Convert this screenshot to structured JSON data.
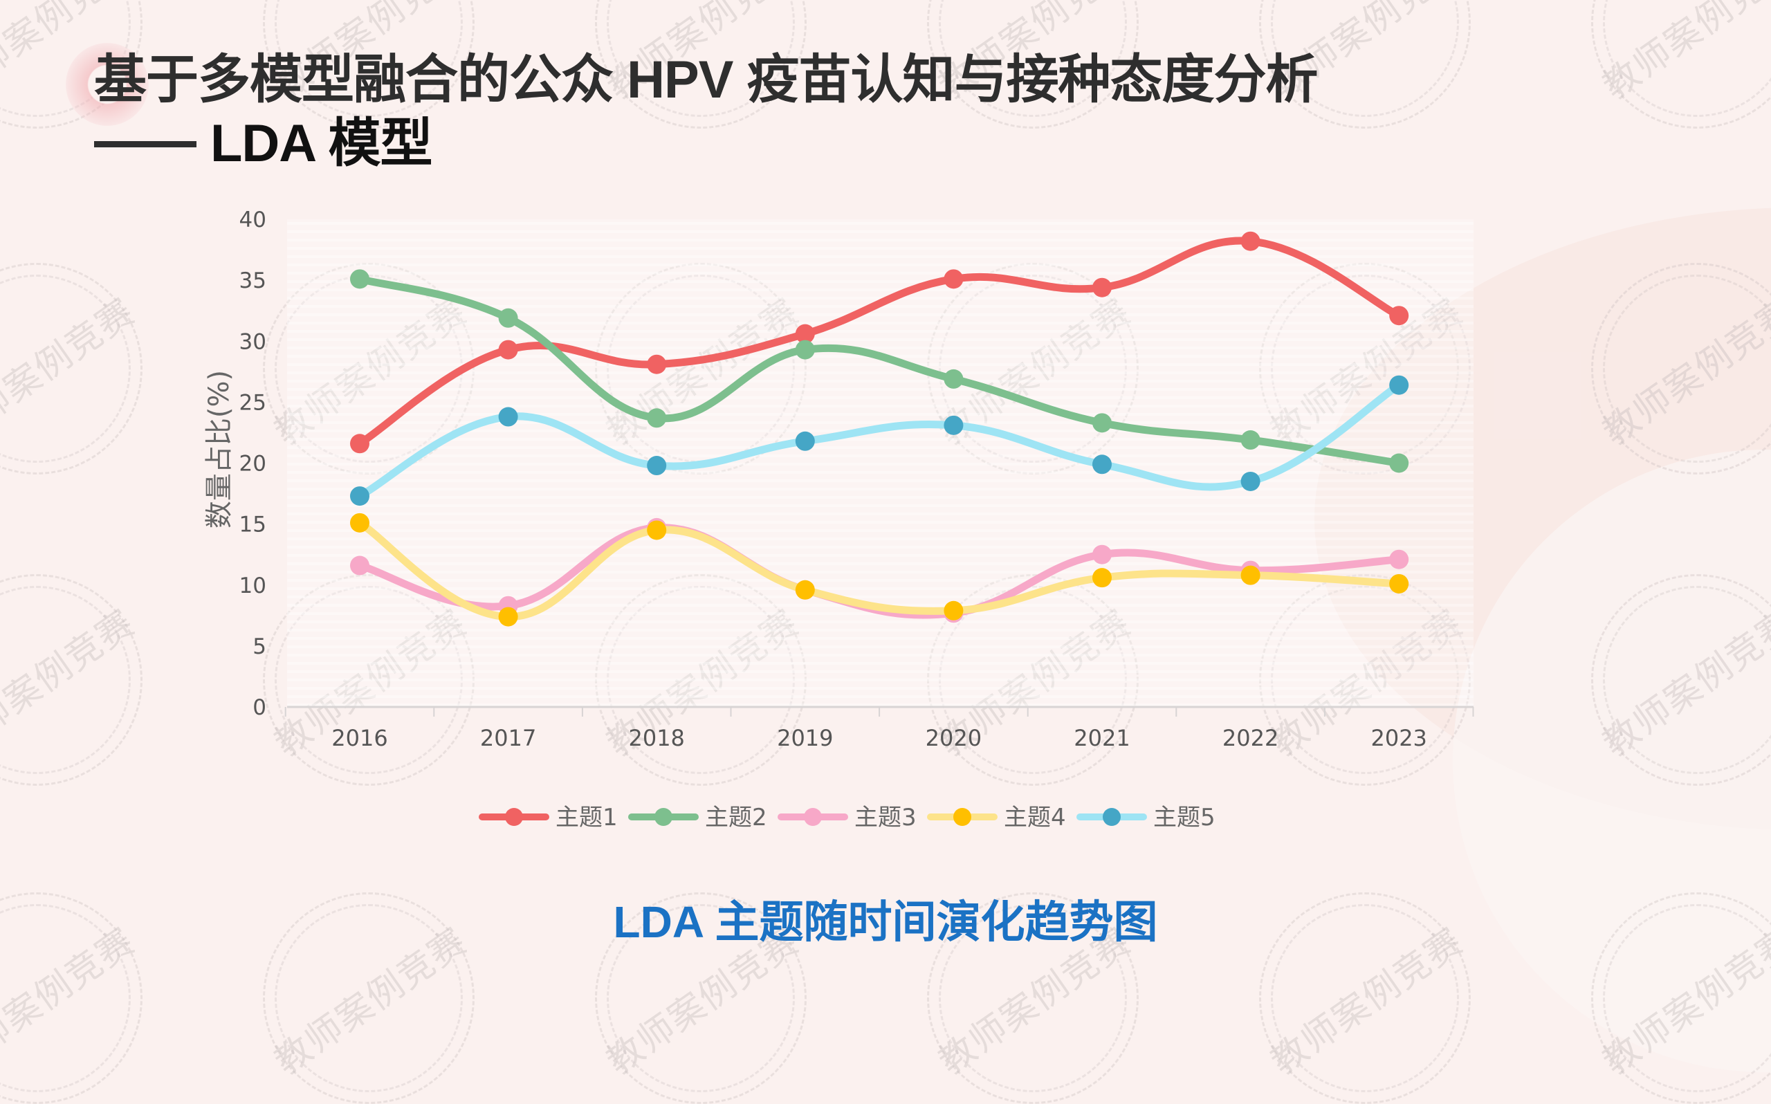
{
  "slide": {
    "title_line1": "基于多模型融合的公众 HPV 疫苗认知与接种态度分析",
    "title_line2": "LDA 模型",
    "caption": "LDA 主题随时间演化趋势图",
    "watermark_text": "教师案例竞赛",
    "colors": {
      "background": "#FBF1EF",
      "title": "#2E2E2E",
      "caption": "#1B72C4"
    }
  },
  "chart_data": {
    "type": "line",
    "title": "LDA 主题随时间演化趋势图",
    "xlabel": "",
    "ylabel": "数量占比(%)",
    "categories": [
      "2016",
      "2017",
      "2018",
      "2019",
      "2020",
      "2021",
      "2022",
      "2023"
    ],
    "ylim": [
      0,
      40
    ],
    "yticks": [
      0,
      5,
      10,
      15,
      20,
      25,
      30,
      35,
      40
    ],
    "grid": false,
    "smooth": true,
    "legend_position": "bottom-center",
    "series": [
      {
        "name": "主题1",
        "line_color": "#F06262",
        "marker_color": "#F06262",
        "values": [
          21.6,
          29.3,
          28.1,
          30.6,
          35.1,
          34.4,
          38.2,
          32.1
        ]
      },
      {
        "name": "主题2",
        "line_color": "#7DBF8E",
        "marker_color": "#7DBF8E",
        "values": [
          35.1,
          31.9,
          23.7,
          29.3,
          26.9,
          23.3,
          21.9,
          20.0
        ]
      },
      {
        "name": "主题3",
        "line_color": "#F7A8C8",
        "marker_color": "#F7A8C8",
        "values": [
          11.6,
          8.3,
          14.7,
          9.6,
          7.7,
          12.5,
          11.2,
          12.1
        ]
      },
      {
        "name": "主题4",
        "line_color": "#FDE38A",
        "marker_color": "#FFBF00",
        "values": [
          15.1,
          7.4,
          14.5,
          9.6,
          7.9,
          10.6,
          10.8,
          10.1
        ]
      },
      {
        "name": "主题5",
        "line_color": "#9EE4F4",
        "marker_color": "#45A6C6",
        "values": [
          17.3,
          23.8,
          19.8,
          21.8,
          23.1,
          19.9,
          18.5,
          26.4
        ]
      }
    ]
  }
}
